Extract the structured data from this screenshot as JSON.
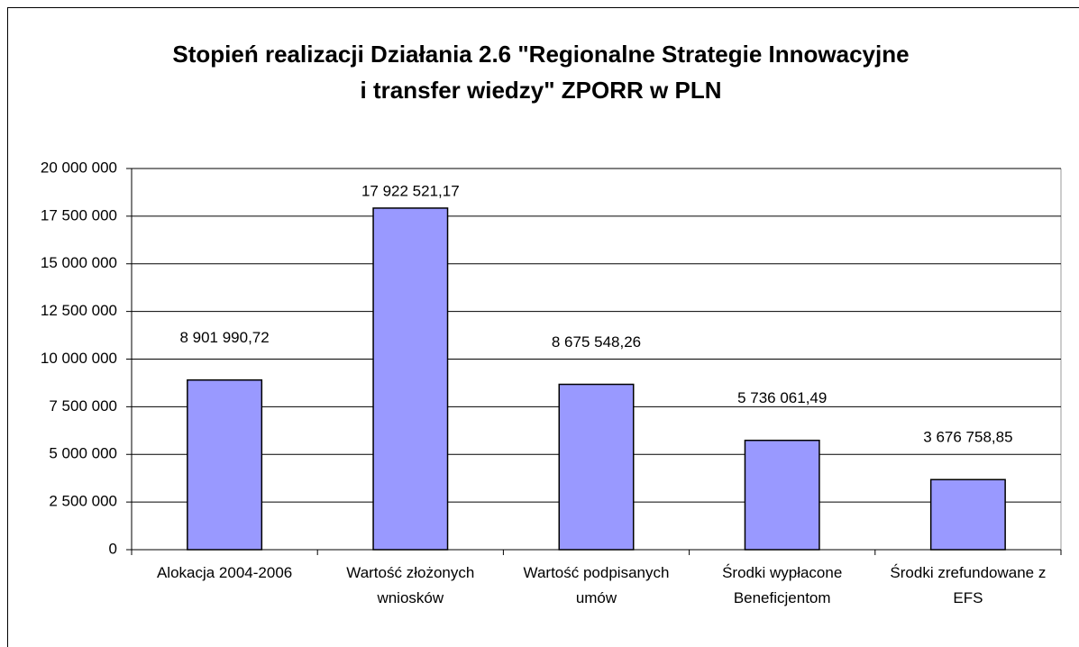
{
  "chart_data": {
    "type": "bar",
    "title": "Stopień realizacji Działania 2.6 \"Regionalne Strategie Innowacyjne i transfer wiedzy\" ZPORR w PLN",
    "categories": [
      "Alokacja 2004-2006",
      "Wartość złożonych wniosków",
      "Wartość podpisanych umów",
      "Środki wypłacone Beneficjentom",
      "Środki zrefundowane z EFS"
    ],
    "values": [
      8901990.72,
      17922521.17,
      8675548.26,
      5736061.49,
      3676758.85
    ],
    "value_labels": [
      "8 901 990,72",
      "17 922 521,17",
      "8 675 548,26",
      "5 736 061,49",
      "3 676 758,85"
    ],
    "color": "#9999ff",
    "ylim": [
      0,
      20000000
    ],
    "yticks": [
      0,
      {
        "value": 2500000,
        "label": "2 500 000"
      },
      {
        "value": 5000000,
        "label": "5 000 000"
      },
      {
        "value": 7500000,
        "label": "7 500 000"
      },
      {
        "value": 10000000,
        "label": "10 000 000"
      },
      {
        "value": 12500000,
        "label": "12 500 000"
      },
      {
        "value": 15000000,
        "label": "15 000 000"
      },
      {
        "value": 17500000,
        "label": "17 500 000"
      },
      {
        "value": 20000000,
        "label": "20 000 000"
      }
    ],
    "grid": true
  }
}
